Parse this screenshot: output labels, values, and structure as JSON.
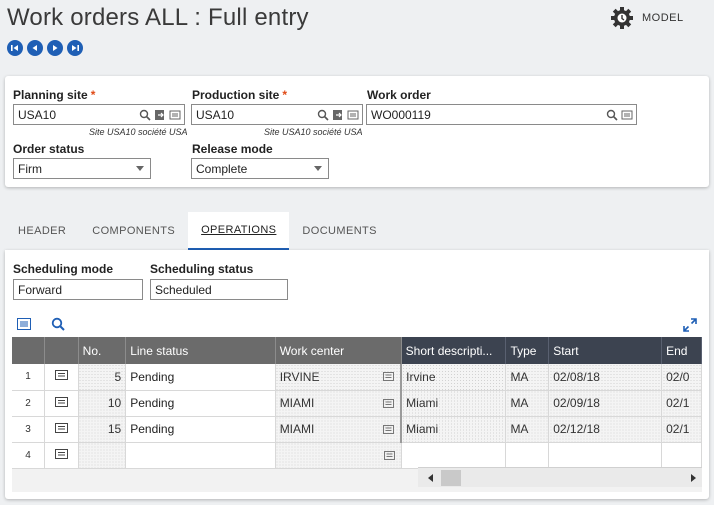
{
  "window": {
    "title": "Work orders ALL : Full entry",
    "model_label": "MODEL"
  },
  "nav": [
    "first-record",
    "previous-record",
    "next-record",
    "last-record"
  ],
  "header_fields": {
    "planning_site": {
      "label": "Planning site",
      "value": "USA10",
      "sub": "Site USA10 société USA",
      "required_mark": "*"
    },
    "production_site": {
      "label": "Production site",
      "value": "USA10",
      "sub": "Site USA10 société USA",
      "required_mark": "*"
    },
    "work_order": {
      "label": "Work order",
      "value": "WO000119"
    },
    "order_status": {
      "label": "Order status",
      "value": "Firm"
    },
    "release_mode": {
      "label": "Release mode",
      "value": "Complete"
    }
  },
  "tabs": [
    {
      "label": "HEADER"
    },
    {
      "label": "COMPONENTS"
    },
    {
      "label": "OPERATIONS"
    },
    {
      "label": "DOCUMENTS"
    }
  ],
  "operations": {
    "scheduling_mode": {
      "label": "Scheduling mode",
      "value": "Forward"
    },
    "scheduling_status": {
      "label": "Scheduling status",
      "value": "Scheduled"
    },
    "columns": [
      "No.",
      "Line status",
      "Work center",
      "Short descripti...",
      "Type",
      "Start",
      "End"
    ],
    "rows": [
      {
        "row": "1",
        "no": "5",
        "line_status": "Pending",
        "work_center": "IRVINE",
        "short_desc": "Irvine",
        "type": "MA",
        "start": "02/08/18",
        "end": "02/0"
      },
      {
        "row": "2",
        "no": "10",
        "line_status": "Pending",
        "work_center": "MIAMI",
        "short_desc": "Miami",
        "type": "MA",
        "start": "02/09/18",
        "end": "02/1"
      },
      {
        "row": "3",
        "no": "15",
        "line_status": "Pending",
        "work_center": "MIAMI",
        "short_desc": "Miami",
        "type": "MA",
        "start": "02/12/18",
        "end": "02/1"
      },
      {
        "row": "4",
        "no": "",
        "line_status": "",
        "work_center": "",
        "short_desc": "",
        "type": "",
        "start": "",
        "end": ""
      }
    ]
  },
  "colors": {
    "accent": "#1f5fb5",
    "required": "#e04a16",
    "header_gray": "#6b6b6b",
    "header_dark": "#3c4350"
  },
  "icons": [
    "gear-model-icon",
    "magnifier-icon",
    "link-icon",
    "detail-icon",
    "fullscreen-icon",
    "scroll-left-icon",
    "scroll-right-icon"
  ]
}
